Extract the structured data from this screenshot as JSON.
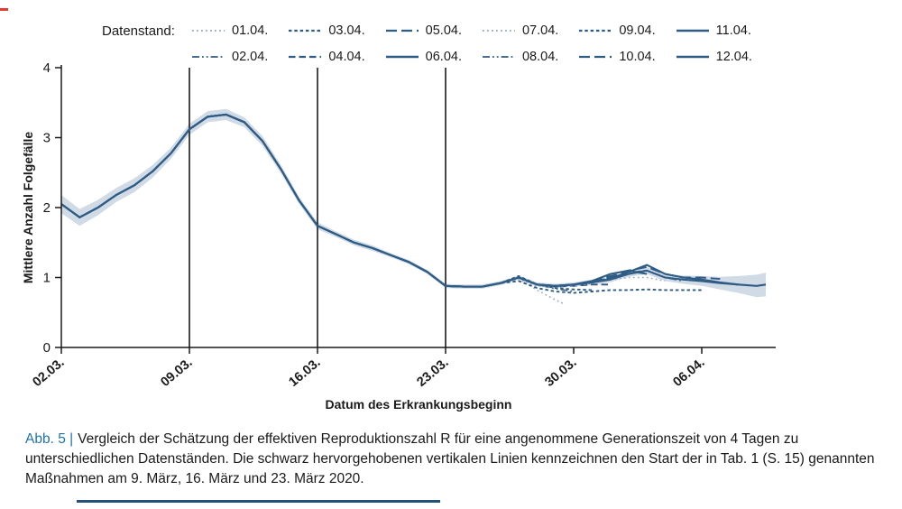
{
  "legend": {
    "label": "Datenstand:"
  },
  "caption": {
    "prefix": "Abb. 5 |",
    "text": "Vergleich der Schätzung der effektiven Reproduktionszahl R für eine angenommene Generationszeit von 4 Tagen zu unterschiedlichen Datenständen. Die schwarz hervorgehobenen vertikalen Linien kennzeichnen den Start der in Tab. 1 (S. 15) genannten Maßnahmen am 9. März, 16. März und 23. März 2020."
  },
  "colors": {
    "main_line": "#2e5c84",
    "mid_line": "#4a6d93",
    "light_line": "#9fb1c6",
    "band": "#b3c3d6",
    "caption_accent": "#1f72a8",
    "rule": "#24527a",
    "red_mark": "#e03c31",
    "axis": "#1a1a1a"
  },
  "chart_data": {
    "type": "line",
    "title": "",
    "xlabel": "Datum des Erkrankungsbeginn",
    "ylabel": "Mittlere Anzahl Folgefälle",
    "ylim": [
      0,
      4
    ],
    "xlim_days": [
      0,
      39
    ],
    "grid": false,
    "legend_position": "top",
    "y_ticks": [
      0,
      1,
      2,
      3,
      4
    ],
    "x_tick_days": [
      0,
      7,
      14,
      21,
      28,
      35
    ],
    "x_tick_labels": [
      "02.03.",
      "09.03.",
      "16.03.",
      "23.03.",
      "30.03.",
      "06.04."
    ],
    "event_line_days": [
      7,
      14,
      21
    ],
    "event_line_labels": [
      "09.03.",
      "16.03.",
      "23.03."
    ],
    "base": {
      "x": [
        0,
        1,
        2,
        3,
        4,
        5,
        6,
        7,
        8,
        9,
        10,
        11,
        12,
        13,
        14,
        15,
        16,
        17,
        18,
        19,
        20,
        21,
        22,
        23,
        24
      ],
      "y": [
        2.05,
        1.86,
        2.0,
        2.18,
        2.32,
        2.52,
        2.78,
        3.12,
        3.3,
        3.33,
        3.22,
        2.95,
        2.55,
        2.1,
        1.74,
        1.62,
        1.5,
        1.42,
        1.32,
        1.22,
        1.08,
        0.88,
        0.87,
        0.87,
        0.92
      ]
    },
    "series": [
      {
        "name": "01.04.",
        "linestyle": "dotted",
        "color": "#9fb1c6",
        "tail_x": [
          24,
          25,
          26,
          27,
          27.5
        ],
        "tail_y": [
          0.92,
          0.98,
          0.82,
          0.68,
          0.62
        ]
      },
      {
        "name": "02.04.",
        "linestyle": "dashdotdot",
        "color": "#4a6d93",
        "tail_x": [
          24,
          25,
          26,
          27,
          28
        ],
        "tail_y": [
          0.92,
          1.0,
          0.9,
          0.84,
          0.8
        ]
      },
      {
        "name": "03.04.",
        "linestyle": "densedash",
        "color": "#2e5c84",
        "tail_x": [
          24,
          25,
          26,
          27,
          28,
          29
        ],
        "tail_y": [
          0.92,
          1.02,
          0.9,
          0.85,
          0.83,
          0.82
        ]
      },
      {
        "name": "04.04.",
        "linestyle": "dash",
        "color": "#2e5c84",
        "tail_x": [
          24,
          25,
          26,
          27,
          28,
          29,
          30
        ],
        "tail_y": [
          0.92,
          1.0,
          0.9,
          0.87,
          0.88,
          0.9,
          0.9
        ]
      },
      {
        "name": "05.04.",
        "linestyle": "longdash",
        "color": "#2e5c84",
        "tail_x": [
          24,
          25,
          26,
          27,
          28,
          29,
          30,
          31
        ],
        "tail_y": [
          0.92,
          1.0,
          0.9,
          0.88,
          0.9,
          0.95,
          1.02,
          1.08
        ]
      },
      {
        "name": "06.04.",
        "linestyle": "solid",
        "color": "#2e5c84",
        "tail_x": [
          24,
          25,
          26,
          27,
          28,
          29,
          30,
          31,
          32
        ],
        "tail_y": [
          0.92,
          1.0,
          0.9,
          0.88,
          0.9,
          0.95,
          1.05,
          1.1,
          1.05
        ]
      },
      {
        "name": "07.04.",
        "linestyle": "dotted",
        "color": "#9fb1c6",
        "tail_x": [
          24,
          25,
          26,
          27,
          28,
          29,
          30,
          31,
          32,
          33
        ],
        "tail_y": [
          0.92,
          0.98,
          0.88,
          0.86,
          0.88,
          0.92,
          0.97,
          1.0,
          1.0,
          0.95
        ]
      },
      {
        "name": "08.04.",
        "linestyle": "dashdotdot",
        "color": "#4a6d93",
        "tail_x": [
          24,
          25,
          26,
          27,
          28,
          29,
          30,
          31,
          32,
          33,
          34
        ],
        "tail_y": [
          0.92,
          1.0,
          0.9,
          0.87,
          0.9,
          0.93,
          1.0,
          1.07,
          1.1,
          1.0,
          0.95
        ]
      },
      {
        "name": "09.04.",
        "linestyle": "densedash",
        "color": "#2e5c84",
        "tail_x": [
          24,
          25,
          26,
          27,
          28,
          29,
          30,
          31,
          32,
          33,
          34,
          35
        ],
        "tail_y": [
          0.92,
          0.95,
          0.85,
          0.8,
          0.78,
          0.8,
          0.82,
          0.82,
          0.83,
          0.82,
          0.82,
          0.82
        ]
      },
      {
        "name": "10.04.",
        "linestyle": "longdash",
        "color": "#2e5c84",
        "tail_x": [
          24,
          25,
          26,
          27,
          28,
          29,
          30,
          31,
          32,
          33,
          34,
          35,
          36
        ],
        "tail_y": [
          0.92,
          1.0,
          0.9,
          0.88,
          0.9,
          0.94,
          1.0,
          1.1,
          1.15,
          1.05,
          1.0,
          1.0,
          0.98
        ]
      },
      {
        "name": "11.04.",
        "linestyle": "solid",
        "color": "#2e5c84",
        "tail_x": [
          24,
          25,
          26,
          27,
          28,
          29,
          30,
          31,
          32,
          33,
          34,
          35,
          36,
          37
        ],
        "tail_y": [
          0.92,
          1.0,
          0.9,
          0.88,
          0.9,
          0.93,
          0.98,
          1.08,
          1.18,
          1.05,
          1.0,
          0.97,
          0.93,
          0.9
        ]
      },
      {
        "name": "12.04.",
        "linestyle": "solid",
        "color": "#2e5c84",
        "tail_x": [
          24,
          25,
          26,
          27,
          28,
          29,
          30,
          31,
          32,
          33,
          34,
          35,
          36,
          37,
          38,
          38.5
        ],
        "tail_y": [
          0.92,
          1.0,
          0.9,
          0.88,
          0.9,
          0.93,
          0.97,
          1.05,
          1.1,
          1.0,
          0.97,
          0.95,
          0.92,
          0.9,
          0.88,
          0.9
        ]
      }
    ],
    "band": {
      "x": [
        0,
        1,
        2,
        3,
        4,
        5,
        6,
        7,
        8,
        9,
        10,
        11,
        12,
        13,
        14,
        15,
        16,
        17,
        18,
        19,
        20,
        21,
        22,
        23,
        24,
        25,
        26,
        27,
        28,
        29,
        30,
        31,
        32,
        33,
        34,
        35,
        36,
        37,
        38,
        38.5
      ],
      "lower": [
        1.92,
        1.74,
        1.89,
        2.08,
        2.22,
        2.43,
        2.7,
        3.04,
        3.22,
        3.25,
        3.15,
        2.88,
        2.49,
        2.05,
        1.69,
        1.58,
        1.46,
        1.38,
        1.29,
        1.19,
        1.05,
        0.85,
        0.84,
        0.84,
        0.89,
        0.97,
        0.87,
        0.85,
        0.87,
        0.89,
        0.93,
        1.01,
        1.05,
        0.95,
        0.91,
        0.88,
        0.83,
        0.78,
        0.72,
        0.73
      ],
      "upper": [
        2.18,
        1.98,
        2.11,
        2.28,
        2.42,
        2.61,
        2.86,
        3.2,
        3.38,
        3.41,
        3.29,
        3.02,
        2.61,
        2.15,
        1.79,
        1.66,
        1.54,
        1.46,
        1.35,
        1.25,
        1.11,
        0.91,
        0.9,
        0.9,
        0.95,
        1.03,
        0.93,
        0.91,
        0.93,
        0.97,
        1.01,
        1.09,
        1.15,
        1.05,
        1.03,
        1.02,
        1.01,
        1.02,
        1.04,
        1.07
      ],
      "color": "#b3c3d6",
      "opacity": 0.6
    }
  }
}
